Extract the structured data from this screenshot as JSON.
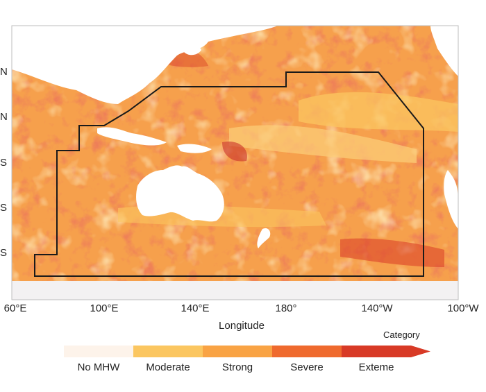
{
  "map": {
    "lat_labels": [
      "N",
      "N",
      "S",
      "S",
      "S"
    ],
    "lon_labels": [
      "60°E",
      "100°E",
      "140°E",
      "180°",
      "140°W",
      "100°W"
    ],
    "x_axis_title": "Longitude"
  },
  "legend": {
    "title": "Category",
    "categories": [
      {
        "label": "No MHW",
        "color": "#fdf3ea"
      },
      {
        "label": "Moderate",
        "color": "#fbc660"
      },
      {
        "label": "Strong",
        "color": "#f9a344"
      },
      {
        "label": "Severe",
        "color": "#ef6a2e"
      },
      {
        "label": "Exteme",
        "color": "#d83a26"
      }
    ]
  },
  "colors": {
    "ocean_base": "#f6a04c",
    "land": "#ffffff",
    "ice": "#f3f1f2",
    "outline": "#1a1a1a"
  }
}
